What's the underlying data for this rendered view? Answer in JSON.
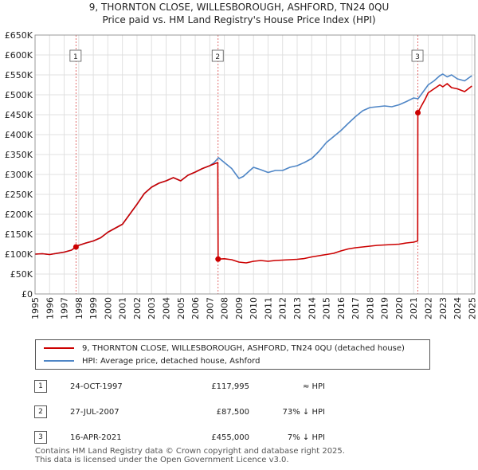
{
  "title": {
    "line1": "9, THORNTON CLOSE, WILLESBOROUGH, ASHFORD, TN24 0QU",
    "line2": "Price paid vs. HM Land Registry's House Price Index (HPI)"
  },
  "chart_data": {
    "type": "line",
    "title": "9, THORNTON CLOSE, WILLESBOROUGH, ASHFORD, TN24 0QU - Price paid vs. HM Land Registry's House Price Index (HPI)",
    "xlabel": "",
    "ylabel": "",
    "xlim": [
      1995,
      2025.2
    ],
    "ylim": [
      0,
      650000
    ],
    "grid": true,
    "x_ticks": [
      1995,
      1996,
      1997,
      1998,
      1999,
      2000,
      2001,
      2002,
      2003,
      2004,
      2005,
      2006,
      2007,
      2008,
      2009,
      2010,
      2011,
      2012,
      2013,
      2014,
      2015,
      2016,
      2017,
      2018,
      2019,
      2020,
      2021,
      2022,
      2023,
      2024,
      2025
    ],
    "y_ticks": [
      0,
      50000,
      100000,
      150000,
      200000,
      250000,
      300000,
      350000,
      400000,
      450000,
      500000,
      550000,
      600000,
      650000
    ],
    "y_tick_labels": [
      "£0",
      "£50K",
      "£100K",
      "£150K",
      "£200K",
      "£250K",
      "£300K",
      "£350K",
      "£400K",
      "£450K",
      "£500K",
      "£550K",
      "£600K",
      "£650K"
    ],
    "series": [
      {
        "name": "9, THORNTON CLOSE, WILLESBOROUGH, ASHFORD, TN24 0QU (detached house)",
        "color": "#cc0000",
        "x": [
          1995.0,
          1995.5,
          1996.0,
          1996.5,
          1997.0,
          1997.5,
          1997.81,
          1998.0,
          1998.5,
          1999.0,
          1999.5,
          2000.0,
          2000.5,
          2001.0,
          2001.5,
          2002.0,
          2002.5,
          2003.0,
          2003.5,
          2004.0,
          2004.5,
          2005.0,
          2005.5,
          2006.0,
          2006.5,
          2007.0,
          2007.2,
          2007.55,
          2007.57,
          2008.0,
          2008.5,
          2009.0,
          2009.5,
          2010.0,
          2010.5,
          2011.0,
          2011.5,
          2012.0,
          2012.5,
          2013.0,
          2013.5,
          2014.0,
          2014.5,
          2015.0,
          2015.5,
          2016.0,
          2016.5,
          2017.0,
          2017.5,
          2018.0,
          2018.5,
          2019.0,
          2019.5,
          2020.0,
          2020.5,
          2021.0,
          2021.28,
          2021.29,
          2021.5,
          2021.8,
          2022.0,
          2022.4,
          2022.8,
          2023.0,
          2023.3,
          2023.6,
          2024.0,
          2024.5,
          2025.0
        ],
        "values": [
          100000,
          101000,
          99000,
          102000,
          105000,
          110000,
          117995,
          122000,
          128000,
          133000,
          141000,
          155000,
          165000,
          175000,
          200000,
          225000,
          252000,
          268000,
          278000,
          284000,
          292000,
          284000,
          298000,
          306000,
          315000,
          322000,
          325000,
          330000,
          87500,
          88500,
          86000,
          80000,
          78000,
          82000,
          84000,
          82000,
          84000,
          85000,
          86000,
          87000,
          89000,
          93000,
          96000,
          99000,
          102000,
          108000,
          113000,
          116000,
          118000,
          120000,
          122000,
          123000,
          124000,
          125000,
          128000,
          130000,
          133000,
          455000,
          470000,
          490000,
          505000,
          515000,
          525000,
          520000,
          528000,
          518000,
          515000,
          508000,
          522000
        ]
      },
      {
        "name": "HPI: Average price, detached house, Ashford",
        "color": "#4f86c6",
        "x": [
          1995.0,
          1995.5,
          1996.0,
          1996.5,
          1997.0,
          1997.5,
          1997.81,
          1998.0,
          1998.5,
          1999.0,
          1999.5,
          2000.0,
          2000.5,
          2001.0,
          2001.5,
          2002.0,
          2002.5,
          2003.0,
          2003.5,
          2004.0,
          2004.5,
          2005.0,
          2005.5,
          2006.0,
          2006.5,
          2007.0,
          2007.3,
          2007.6,
          2008.0,
          2008.5,
          2009.0,
          2009.3,
          2009.6,
          2010.0,
          2010.5,
          2011.0,
          2011.5,
          2012.0,
          2012.5,
          2013.0,
          2013.5,
          2014.0,
          2014.5,
          2015.0,
          2015.5,
          2016.0,
          2016.5,
          2017.0,
          2017.5,
          2018.0,
          2018.5,
          2019.0,
          2019.5,
          2020.0,
          2020.5,
          2021.0,
          2021.3,
          2021.5,
          2021.8,
          2022.0,
          2022.4,
          2022.8,
          2023.0,
          2023.3,
          2023.6,
          2024.0,
          2024.5,
          2025.0
        ],
        "values": [
          100000,
          101000,
          99000,
          102000,
          105000,
          110000,
          117995,
          122000,
          128000,
          133000,
          141000,
          155000,
          165000,
          175000,
          200000,
          225000,
          252000,
          268000,
          278000,
          284000,
          292000,
          284000,
          298000,
          306000,
          315000,
          322000,
          330000,
          342000,
          330000,
          315000,
          290000,
          295000,
          305000,
          318000,
          312000,
          305000,
          310000,
          310000,
          318000,
          322000,
          330000,
          340000,
          358000,
          380000,
          395000,
          410000,
          428000,
          445000,
          460000,
          468000,
          470000,
          472000,
          470000,
          475000,
          483000,
          492000,
          490000,
          500000,
          515000,
          525000,
          535000,
          548000,
          552000,
          545000,
          550000,
          540000,
          535000,
          548000
        ]
      }
    ],
    "sales": [
      {
        "n": "1",
        "x": 1997.81,
        "y": 117995
      },
      {
        "n": "2",
        "x": 2007.57,
        "y": 87500
      },
      {
        "n": "3",
        "x": 2021.29,
        "y": 455000
      }
    ]
  },
  "legend": {
    "property": "9, THORNTON CLOSE, WILLESBOROUGH, ASHFORD, TN24 0QU (detached house)",
    "hpi": "HPI: Average price, detached house, Ashford"
  },
  "transactions": [
    {
      "n": "1",
      "date": "24-OCT-1997",
      "price": "£117,995",
      "rel": "≈ HPI"
    },
    {
      "n": "2",
      "date": "27-JUL-2007",
      "price": "£87,500",
      "rel": "73% ↓ HPI"
    },
    {
      "n": "3",
      "date": "16-APR-2021",
      "price": "£455,000",
      "rel": "7% ↓ HPI"
    }
  ],
  "footer": {
    "line1": "Contains HM Land Registry data © Crown copyright and database right 2025.",
    "line2": "This data is licensed under the Open Government Licence v3.0."
  },
  "colors": {
    "property": "#cc0000",
    "hpi": "#4f86c6",
    "grid": "#e0e0e0",
    "marker_line": "#cc0000"
  }
}
